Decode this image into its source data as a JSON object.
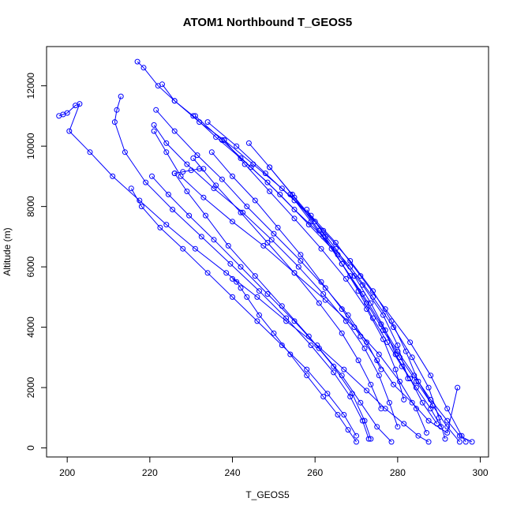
{
  "chart_data": {
    "type": "line",
    "title": "ATOM1 Northbound T_GEOS5",
    "xlabel": "T_GEOS5",
    "ylabel": "Altitude (m)",
    "xlim": [
      195,
      302
    ],
    "ylim": [
      -300,
      13300
    ],
    "x_ticks": [
      200,
      220,
      240,
      260,
      280,
      300
    ],
    "y_ticks": [
      0,
      2000,
      4000,
      6000,
      8000,
      10000,
      12000
    ],
    "grid": false,
    "legend": "none",
    "marker": "open-circle",
    "color": "#0000ff",
    "series": [
      {
        "x": [
          217.0,
          218.5,
          222.0,
          226.0,
          232.0,
          238.0,
          245.0,
          252.0,
          259.0,
          265.0,
          271.0,
          277.0,
          283.0,
          288.0,
          292.0,
          295.5,
          296.5
        ],
        "y": [
          12800,
          12600,
          12000,
          11500,
          10800,
          10200,
          9400,
          8600,
          7700,
          6800,
          5700,
          4600,
          3500,
          2400,
          1300,
          400,
          200
        ]
      },
      {
        "x": [
          223.0,
          226.0,
          230.5,
          236.0,
          242.0,
          248.5,
          255.0,
          262.0,
          268.5,
          274.0,
          279.0,
          283.5,
          287.5,
          290.0,
          291.5
        ],
        "y": [
          12050,
          11500,
          11000,
          10300,
          9600,
          8800,
          7900,
          7000,
          6000,
          5000,
          4000,
          3000,
          2000,
          1000,
          300
        ]
      },
      {
        "x": [
          198.0,
          199.0,
          200.0,
          202.0,
          203.0,
          200.5,
          205.5,
          211.0,
          217.5,
          224.0,
          231.0,
          238.5,
          246.0,
          253.0,
          260.5,
          267.0,
          272.5,
          277.0,
          281.5,
          285.0,
          287.5
        ],
        "y": [
          11000,
          11050,
          11100,
          11350,
          11400,
          10500,
          9800,
          9000,
          8200,
          7400,
          6600,
          5800,
          5000,
          4200,
          3400,
          2600,
          1900,
          1300,
          800,
          400,
          200
        ]
      },
      {
        "x": [
          213.0,
          212.0,
          211.5,
          214.0,
          219.0,
          225.5,
          232.5,
          239.5,
          246.5,
          253.0,
          259.0,
          264.5,
          268.5,
          271.5,
          273.0
        ],
        "y": [
          11650,
          11200,
          10800,
          9800,
          8800,
          7900,
          7000,
          6100,
          5200,
          4300,
          3400,
          2500,
          1700,
          900,
          300
        ]
      },
      {
        "x": [
          221.0,
          224.0,
          227.5,
          233.0,
          240.0,
          247.5,
          255.0,
          262.5,
          269.5,
          275.5,
          280.5,
          284.5,
          287.0
        ],
        "y": [
          10500,
          9800,
          9000,
          8300,
          7500,
          6700,
          5800,
          4900,
          4000,
          3100,
          2200,
          1300,
          500
        ]
      },
      {
        "x": [
          220.5,
          224.5,
          229.5,
          235.5,
          242.0,
          248.5,
          255.0,
          261.0,
          266.5,
          271.0,
          275.0,
          278.5
        ],
        "y": [
          9000,
          8400,
          7700,
          6900,
          6000,
          5100,
          4200,
          3300,
          2400,
          1500,
          700,
          200
        ]
      },
      {
        "x": [
          226.0,
          229.0,
          233.5,
          239.0,
          245.5,
          252.0,
          258.5,
          264.5,
          269.0,
          272.0,
          273.5
        ],
        "y": [
          9100,
          8500,
          7700,
          6700,
          5700,
          4700,
          3700,
          2700,
          1800,
          900,
          300
        ]
      },
      {
        "x": [
          240.0,
          241.0,
          242.0,
          243.5,
          246.5,
          250.0,
          254.0,
          258.0,
          262.0,
          265.5,
          268.0,
          270.0
        ],
        "y": [
          5600,
          5500,
          5300,
          5000,
          4400,
          3800,
          3100,
          2400,
          1700,
          1100,
          600,
          200
        ]
      },
      {
        "x": [
          238.0,
          243.0,
          249.0,
          255.0,
          261.5,
          267.5,
          272.5,
          276.5,
          279.5,
          281.5
        ],
        "y": [
          10200,
          9400,
          8500,
          7600,
          6600,
          5600,
          4600,
          3600,
          2600,
          1600
        ]
      },
      {
        "x": [
          231.0,
          237.5,
          244.5,
          251.5,
          258.5,
          265.5,
          271.5,
          276.5,
          280.0,
          282.5
        ],
        "y": [
          11000,
          10200,
          9300,
          8400,
          7400,
          6400,
          5400,
          4400,
          3400,
          2300
        ]
      },
      {
        "x": [
          234.0,
          241.0,
          248.0,
          255.0,
          262.0,
          268.5,
          274.0,
          278.5,
          282.0,
          285.0,
          288.5
        ],
        "y": [
          10800,
          10000,
          9100,
          8200,
          7200,
          6200,
          5200,
          4200,
          3200,
          2200,
          1400
        ]
      },
      {
        "x": [
          215.5,
          218.0,
          222.5,
          228.0,
          234.0,
          240.0,
          246.0,
          252.0,
          258.0,
          263.0,
          267.0,
          270.0
        ],
        "y": [
          8600,
          8000,
          7300,
          6600,
          5800,
          5000,
          4200,
          3400,
          2600,
          1800,
          1100,
          400
        ]
      },
      {
        "x": [
          221.0,
          224.0,
          229.0,
          235.5,
          242.5,
          249.5,
          256.0,
          262.0,
          267.5,
          272.0,
          275.5,
          278.0,
          280.0
        ],
        "y": [
          10700,
          10100,
          9400,
          8600,
          7800,
          6900,
          6000,
          5100,
          4200,
          3300,
          2400,
          1500,
          700
        ]
      },
      {
        "x": [
          244.0,
          249.0,
          254.5,
          260.0,
          265.0,
          269.5,
          273.5,
          277.0,
          279.5,
          283.0,
          286.0,
          289.5
        ],
        "y": [
          10100,
          9300,
          8400,
          7500,
          6600,
          5700,
          4800,
          3900,
          3100,
          2300,
          1500,
          800
        ]
      },
      {
        "x": [
          249.0,
          255.0,
          261.0,
          266.5,
          271.5,
          276.0,
          280.0,
          284.0,
          288.0,
          292.0,
          295.0,
          298.0
        ],
        "y": [
          9300,
          8300,
          7200,
          6100,
          5100,
          4100,
          3200,
          2400,
          1600,
          900,
          400,
          200
        ]
      },
      {
        "x": [
          254.0,
          259.0,
          264.0,
          268.5,
          272.5,
          276.5,
          280.5,
          284.5,
          288.5,
          292.0,
          295.0
        ],
        "y": [
          8400,
          7500,
          6600,
          5700,
          4800,
          3900,
          3000,
          2200,
          1400,
          700,
          200
        ]
      },
      {
        "x": [
          258.0,
          262.5,
          266.5,
          270.5,
          274.0,
          277.5,
          281.0,
          284.5,
          288.0,
          290.5
        ],
        "y": [
          7900,
          7000,
          6100,
          5200,
          4300,
          3500,
          2700,
          2000,
          1300,
          700
        ]
      },
      {
        "x": [
          226.0,
          228.0,
          230.0,
          232.0,
          233.0
        ],
        "y": [
          9100,
          9150,
          9200,
          9250,
          9250
        ]
      },
      {
        "x": [
          235.0,
          240.0,
          245.5,
          251.0,
          256.5,
          261.5,
          266.5,
          271.0,
          275.0,
          279.0,
          283.5,
          287.5,
          292.0,
          294.5
        ],
        "y": [
          9800,
          9000,
          8200,
          7300,
          6400,
          5500,
          4600,
          3700,
          2900,
          2100,
          1500,
          900,
          500,
          2000
        ]
      },
      {
        "x": [
          221.5,
          226.0,
          231.5,
          237.5,
          243.5,
          250.0,
          256.5,
          262.5,
          268.0,
          272.5,
          276.0
        ],
        "y": [
          11200,
          10500,
          9700,
          8900,
          8000,
          7100,
          6200,
          5300,
          4400,
          3500,
          2600
        ]
      },
      {
        "x": [
          230.5,
          236.0,
          242.0,
          248.5,
          255.0,
          261.0,
          266.5,
          270.5,
          273.5,
          276.0
        ],
        "y": [
          9600,
          8700,
          7800,
          6800,
          5800,
          4800,
          3800,
          2900,
          2100,
          1300
        ]
      }
    ]
  }
}
